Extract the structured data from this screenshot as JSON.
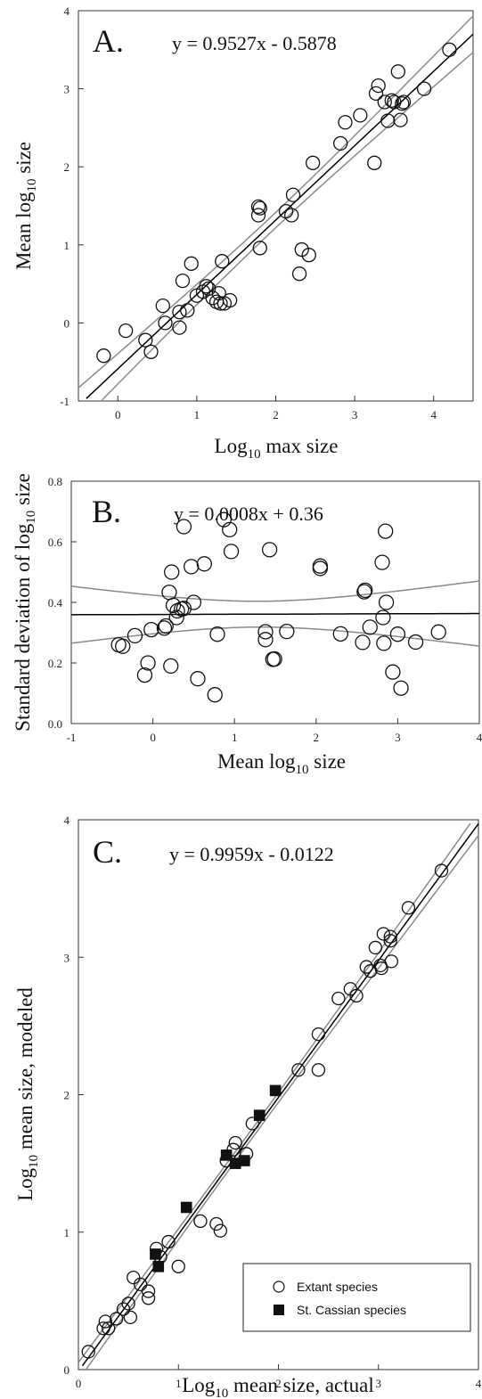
{
  "chart_data": [
    {
      "type": "scatter",
      "panel_label": "A.",
      "equation": "y = 0.9527x - 0.5878",
      "xlabel": "Log",
      "xlabel_sub": "10",
      "xlabel_rest": " max size",
      "ylabel": "Mean log",
      "ylabel_sub": "10",
      "ylabel_rest": " size",
      "xlim": [
        -0.5,
        4.5
      ],
      "ylim": [
        -1,
        4
      ],
      "xticks": [
        0,
        1,
        2,
        3,
        4
      ],
      "xtick_labels": [
        "0",
        "1",
        "2",
        "3",
        "4"
      ],
      "yticks": [
        -1,
        0,
        1,
        2,
        3,
        4
      ],
      "ytick_labels": [
        "-1",
        "0",
        "1",
        "2",
        "3",
        "4"
      ],
      "grid": false,
      "regression": {
        "slope": 0.9527,
        "intercept": -0.5878,
        "band": "95% confidence"
      },
      "points": [
        {
          "x": -0.18,
          "y": -0.42
        },
        {
          "x": 0.1,
          "y": -0.1
        },
        {
          "x": 0.35,
          "y": -0.22
        },
        {
          "x": 0.42,
          "y": -0.37
        },
        {
          "x": 0.57,
          "y": 0.22
        },
        {
          "x": 0.6,
          "y": 0.0
        },
        {
          "x": 0.78,
          "y": 0.14
        },
        {
          "x": 0.78,
          "y": -0.06
        },
        {
          "x": 0.82,
          "y": 0.54
        },
        {
          "x": 0.88,
          "y": 0.16
        },
        {
          "x": 0.93,
          "y": 0.76
        },
        {
          "x": 1.0,
          "y": 0.35
        },
        {
          "x": 1.08,
          "y": 0.4
        },
        {
          "x": 1.12,
          "y": 0.47
        },
        {
          "x": 1.15,
          "y": 0.44
        },
        {
          "x": 1.2,
          "y": 0.32
        },
        {
          "x": 1.25,
          "y": 0.27
        },
        {
          "x": 1.28,
          "y": 0.38
        },
        {
          "x": 1.3,
          "y": 0.25
        },
        {
          "x": 1.32,
          "y": 0.79
        },
        {
          "x": 1.35,
          "y": 0.25
        },
        {
          "x": 1.42,
          "y": 0.29
        },
        {
          "x": 1.78,
          "y": 1.38
        },
        {
          "x": 1.78,
          "y": 1.49
        },
        {
          "x": 1.8,
          "y": 1.47
        },
        {
          "x": 1.8,
          "y": 0.96
        },
        {
          "x": 2.13,
          "y": 1.43
        },
        {
          "x": 2.2,
          "y": 1.38
        },
        {
          "x": 2.22,
          "y": 1.64
        },
        {
          "x": 2.3,
          "y": 0.63
        },
        {
          "x": 2.33,
          "y": 0.94
        },
        {
          "x": 2.42,
          "y": 0.87
        },
        {
          "x": 2.47,
          "y": 2.05
        },
        {
          "x": 2.82,
          "y": 2.3
        },
        {
          "x": 2.88,
          "y": 2.57
        },
        {
          "x": 3.07,
          "y": 2.66
        },
        {
          "x": 3.25,
          "y": 2.05
        },
        {
          "x": 3.27,
          "y": 2.94
        },
        {
          "x": 3.3,
          "y": 3.04
        },
        {
          "x": 3.38,
          "y": 2.83
        },
        {
          "x": 3.42,
          "y": 2.59
        },
        {
          "x": 3.47,
          "y": 2.85
        },
        {
          "x": 3.5,
          "y": 2.83
        },
        {
          "x": 3.55,
          "y": 3.22
        },
        {
          "x": 3.58,
          "y": 2.6
        },
        {
          "x": 3.6,
          "y": 2.81
        },
        {
          "x": 3.62,
          "y": 2.83
        },
        {
          "x": 3.88,
          "y": 3.0
        },
        {
          "x": 4.2,
          "y": 3.5
        }
      ]
    },
    {
      "type": "scatter",
      "panel_label": "B.",
      "equation": "y = 0.0008x + 0.36",
      "xlabel": "Mean log",
      "xlabel_sub": "10",
      "xlabel_rest": " size",
      "ylabel": "Standard deviation of log",
      "ylabel_sub": "10",
      "ylabel_rest": " size",
      "xlim": [
        -1,
        4
      ],
      "ylim": [
        0.0,
        0.8
      ],
      "xticks": [
        -1,
        0,
        1,
        2,
        3,
        4
      ],
      "xtick_labels": [
        "-1",
        "0",
        "1",
        "2",
        "3",
        "4"
      ],
      "yticks": [
        0.0,
        0.2,
        0.4,
        0.6,
        0.8
      ],
      "ytick_labels": [
        "0.0",
        "0.2",
        "0.4",
        "0.6",
        "0.8"
      ],
      "grid": false,
      "regression": {
        "slope": 0.0008,
        "intercept": 0.36,
        "band": "95% confidence"
      },
      "points": [
        {
          "x": -0.42,
          "y": 0.26
        },
        {
          "x": -0.37,
          "y": 0.255
        },
        {
          "x": -0.22,
          "y": 0.29
        },
        {
          "x": -0.1,
          "y": 0.16
        },
        {
          "x": -0.06,
          "y": 0.2
        },
        {
          "x": -0.02,
          "y": 0.31
        },
        {
          "x": 0.14,
          "y": 0.315
        },
        {
          "x": 0.16,
          "y": 0.322
        },
        {
          "x": 0.2,
          "y": 0.433
        },
        {
          "x": 0.22,
          "y": 0.19
        },
        {
          "x": 0.23,
          "y": 0.5
        },
        {
          "x": 0.25,
          "y": 0.39
        },
        {
          "x": 0.29,
          "y": 0.35
        },
        {
          "x": 0.3,
          "y": 0.372
        },
        {
          "x": 0.35,
          "y": 0.378
        },
        {
          "x": 0.38,
          "y": 0.38
        },
        {
          "x": 0.38,
          "y": 0.65
        },
        {
          "x": 0.47,
          "y": 0.518
        },
        {
          "x": 0.5,
          "y": 0.4
        },
        {
          "x": 0.55,
          "y": 0.148
        },
        {
          "x": 0.63,
          "y": 0.527
        },
        {
          "x": 0.76,
          "y": 0.095
        },
        {
          "x": 0.79,
          "y": 0.295
        },
        {
          "x": 0.87,
          "y": 0.673
        },
        {
          "x": 0.94,
          "y": 0.64
        },
        {
          "x": 0.96,
          "y": 0.568
        },
        {
          "x": 1.38,
          "y": 0.303
        },
        {
          "x": 1.38,
          "y": 0.277
        },
        {
          "x": 1.43,
          "y": 0.574
        },
        {
          "x": 1.47,
          "y": 0.212
        },
        {
          "x": 1.49,
          "y": 0.213
        },
        {
          "x": 1.64,
          "y": 0.304
        },
        {
          "x": 2.05,
          "y": 0.52
        },
        {
          "x": 2.05,
          "y": 0.512
        },
        {
          "x": 2.3,
          "y": 0.296
        },
        {
          "x": 2.57,
          "y": 0.268
        },
        {
          "x": 2.59,
          "y": 0.435
        },
        {
          "x": 2.6,
          "y": 0.44
        },
        {
          "x": 2.66,
          "y": 0.318
        },
        {
          "x": 2.81,
          "y": 0.532
        },
        {
          "x": 2.82,
          "y": 0.35
        },
        {
          "x": 2.83,
          "y": 0.265
        },
        {
          "x": 2.85,
          "y": 0.635
        },
        {
          "x": 2.86,
          "y": 0.4
        },
        {
          "x": 2.94,
          "y": 0.17
        },
        {
          "x": 3.0,
          "y": 0.295
        },
        {
          "x": 3.04,
          "y": 0.117
        },
        {
          "x": 3.22,
          "y": 0.269
        },
        {
          "x": 3.5,
          "y": 0.302
        }
      ]
    },
    {
      "type": "scatter",
      "panel_label": "C.",
      "equation": "y = 0.9959x - 0.0122",
      "xlabel": "Log",
      "xlabel_sub": "10",
      "xlabel_rest": " mean size, actual",
      "ylabel": "Log",
      "ylabel_sub": "10",
      "ylabel_rest": " mean size, modeled",
      "xlim": [
        0,
        4
      ],
      "ylim": [
        0,
        4
      ],
      "xticks": [
        0,
        1,
        2,
        3,
        4
      ],
      "xtick_labels": [
        "0",
        "1",
        "2",
        "3",
        "4"
      ],
      "yticks": [
        0,
        1,
        2,
        3,
        4
      ],
      "ytick_labels": [
        "0",
        "1",
        "2",
        "3",
        "4"
      ],
      "grid": false,
      "legend_position": "bottom-right",
      "regression": {
        "slope": 0.9959,
        "intercept": -0.0122,
        "band": "95% confidence"
      },
      "series": [
        {
          "name": "Extant species",
          "marker": "open-circle",
          "points": [
            {
              "x": 0.1,
              "y": 0.13
            },
            {
              "x": 0.25,
              "y": 0.3
            },
            {
              "x": 0.27,
              "y": 0.35
            },
            {
              "x": 0.3,
              "y": 0.3
            },
            {
              "x": 0.38,
              "y": 0.37
            },
            {
              "x": 0.45,
              "y": 0.44
            },
            {
              "x": 0.5,
              "y": 0.48
            },
            {
              "x": 0.52,
              "y": 0.38
            },
            {
              "x": 0.55,
              "y": 0.67
            },
            {
              "x": 0.62,
              "y": 0.62
            },
            {
              "x": 0.7,
              "y": 0.57
            },
            {
              "x": 0.7,
              "y": 0.52
            },
            {
              "x": 0.78,
              "y": 0.88
            },
            {
              "x": 0.82,
              "y": 0.82
            },
            {
              "x": 0.9,
              "y": 0.93
            },
            {
              "x": 1.0,
              "y": 0.75
            },
            {
              "x": 1.22,
              "y": 1.08
            },
            {
              "x": 1.38,
              "y": 1.06
            },
            {
              "x": 1.42,
              "y": 1.01
            },
            {
              "x": 1.48,
              "y": 1.52
            },
            {
              "x": 1.55,
              "y": 1.6
            },
            {
              "x": 1.57,
              "y": 1.65
            },
            {
              "x": 1.68,
              "y": 1.57
            },
            {
              "x": 1.74,
              "y": 1.79
            },
            {
              "x": 2.2,
              "y": 2.18
            },
            {
              "x": 2.4,
              "y": 2.44
            },
            {
              "x": 2.4,
              "y": 2.18
            },
            {
              "x": 2.6,
              "y": 2.7
            },
            {
              "x": 2.72,
              "y": 2.77
            },
            {
              "x": 2.78,
              "y": 2.72
            },
            {
              "x": 2.88,
              "y": 2.93
            },
            {
              "x": 2.92,
              "y": 2.9
            },
            {
              "x": 2.97,
              "y": 3.07
            },
            {
              "x": 3.02,
              "y": 2.94
            },
            {
              "x": 3.03,
              "y": 2.92
            },
            {
              "x": 3.05,
              "y": 3.17
            },
            {
              "x": 3.12,
              "y": 3.15
            },
            {
              "x": 3.12,
              "y": 3.12
            },
            {
              "x": 3.13,
              "y": 2.97
            },
            {
              "x": 3.3,
              "y": 3.36
            },
            {
              "x": 3.63,
              "y": 3.63
            }
          ]
        },
        {
          "name": "St. Cassian species",
          "marker": "filled-square",
          "points": [
            {
              "x": 0.77,
              "y": 0.84
            },
            {
              "x": 0.8,
              "y": 0.75
            },
            {
              "x": 1.08,
              "y": 1.18
            },
            {
              "x": 1.48,
              "y": 1.56
            },
            {
              "x": 1.57,
              "y": 1.5
            },
            {
              "x": 1.66,
              "y": 1.52
            },
            {
              "x": 1.81,
              "y": 1.85
            },
            {
              "x": 1.97,
              "y": 2.03
            }
          ]
        }
      ]
    }
  ]
}
